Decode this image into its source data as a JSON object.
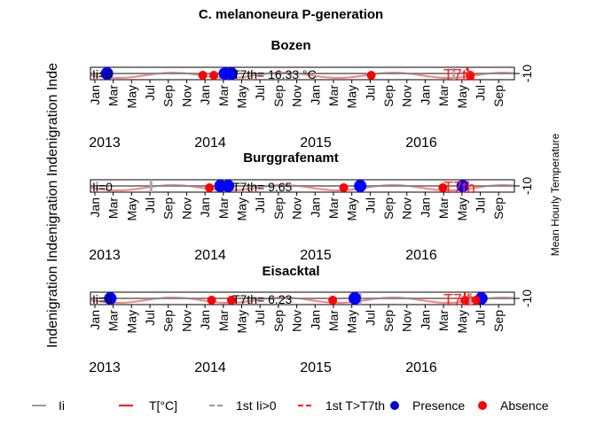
{
  "chart_data": {
    "type": "line",
    "title": "C. melanoneura P-generation",
    "ylabel": "Indenigration Indenigration Indenigration Inde",
    "y2label": "Mean Hourly Temperature",
    "month_ticks": [
      "Jan",
      "Mar",
      "May",
      "Jul",
      "Sep",
      "Nov",
      "Jan",
      "Mar",
      "May",
      "Jul",
      "Sep",
      "Nov",
      "Jan",
      "Mar",
      "May",
      "Jul",
      "Sep",
      "Nov",
      "Jan",
      "Mar",
      "May",
      "Jul",
      "Sep"
    ],
    "years": [
      "2013",
      "2014",
      "2015",
      "2016"
    ],
    "right_tick": "-10",
    "legend": [
      {
        "label": "Ii",
        "color": "#999999",
        "kind": "line"
      },
      {
        "label": "T[°C]",
        "color": "#ff0000",
        "kind": "line"
      },
      {
        "label": "1st Ii>0",
        "color": "#999999",
        "kind": "dash"
      },
      {
        "label": "1st T>T7th",
        "color": "#ff0000",
        "kind": "dash"
      },
      {
        "label": "Presence",
        "color": "#0000cc",
        "kind": "point"
      },
      {
        "label": "Absence",
        "color": "#ff0000",
        "kind": "point"
      }
    ],
    "panels": [
      {
        "title": "Bozen",
        "y_left_text": "Ii=0",
        "annotations": [
          "T7th= 16.33 °C",
          "T7th"
        ],
        "presence_dates": [
          2013.15,
          2014.22,
          2014.28
        ],
        "absence_dates": [
          2014.02,
          2014.12,
          2015.55,
          2016.45
        ],
        "first_ii_dates": [
          2014.2,
          2016.3
        ],
        "first_t_dates": [
          2016.42
        ]
      },
      {
        "title": "Burggrafenamt",
        "y_left_text": "Ii=0",
        "annotations": [
          "T7th= 9.65",
          "T7th"
        ],
        "presence_dates": [
          2014.18,
          2014.25,
          2015.45,
          2016.38
        ],
        "absence_dates": [
          2014.08,
          2015.3,
          2016.2
        ],
        "first_ii_dates": [
          2013.55,
          2015.45,
          2016.35
        ],
        "first_t_dates": [
          2016.4
        ]
      },
      {
        "title": "Eisacktal",
        "y_left_text": "Ii=0",
        "annotations": [
          "T7th= 6.23",
          "T7th"
        ],
        "presence_dates": [
          2013.18,
          2015.4,
          2016.55
        ],
        "absence_dates": [
          2014.1,
          2014.28,
          2015.2,
          2016.4,
          2016.5
        ],
        "first_ii_dates": [
          2015.45,
          2016.45
        ],
        "first_t_dates": [
          2016.4
        ]
      }
    ]
  }
}
